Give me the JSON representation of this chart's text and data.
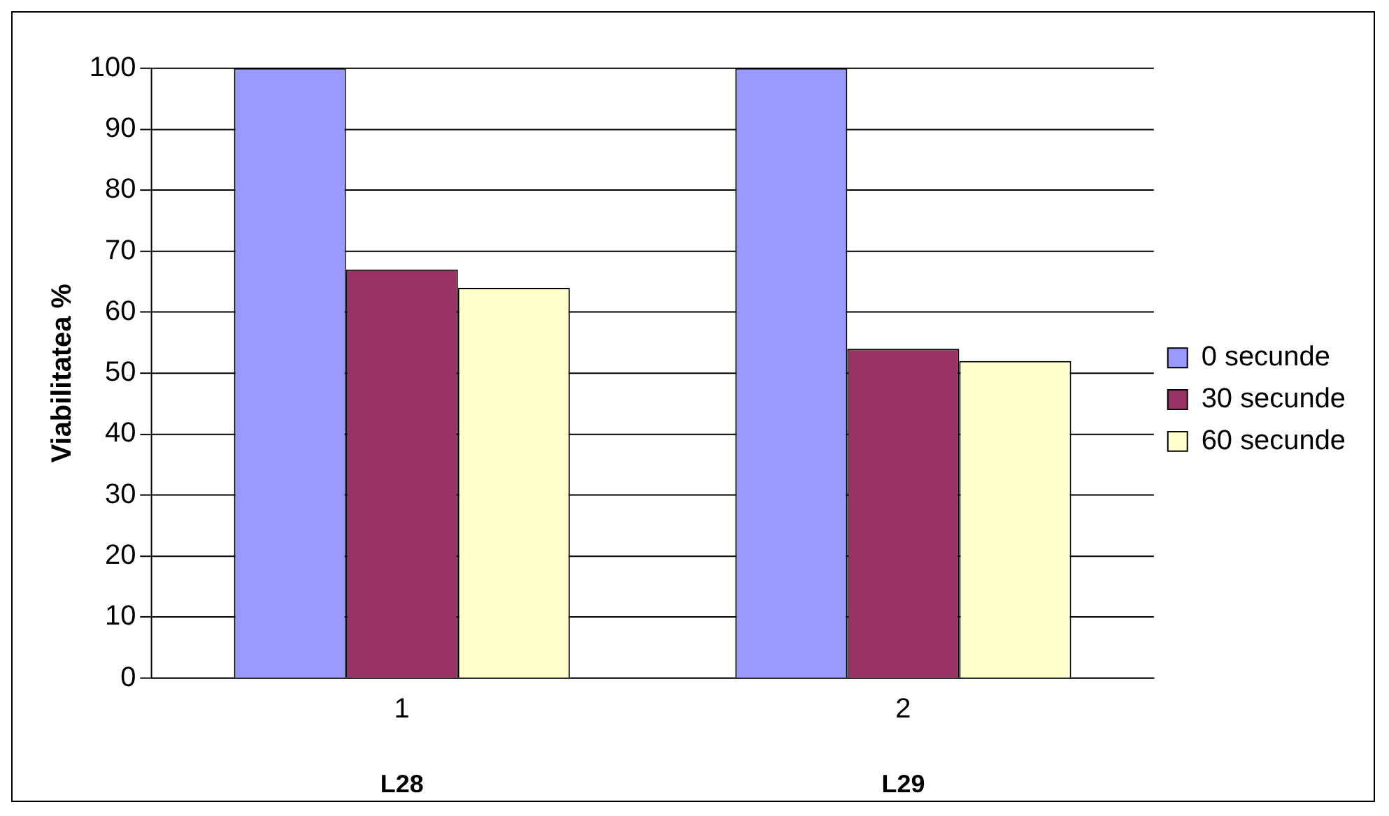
{
  "chart_data": {
    "type": "bar",
    "ylabel": "Viabilitatea %",
    "categories": [
      "1",
      "2"
    ],
    "series": [
      {
        "name": "0 secunde",
        "color": "#9999ff",
        "values": [
          100,
          100
        ]
      },
      {
        "name": "30 secunde",
        "color": "#993366",
        "values": [
          67,
          54
        ]
      },
      {
        "name": "60 secunde",
        "color": "#ffffcc",
        "values": [
          64,
          52
        ]
      }
    ],
    "ylim": [
      0,
      100
    ],
    "yticks": [
      0,
      10,
      20,
      30,
      40,
      50,
      60,
      70,
      80,
      90,
      100
    ],
    "grid": "y",
    "legend": "right",
    "annotations": [
      "L28",
      "L29"
    ]
  }
}
